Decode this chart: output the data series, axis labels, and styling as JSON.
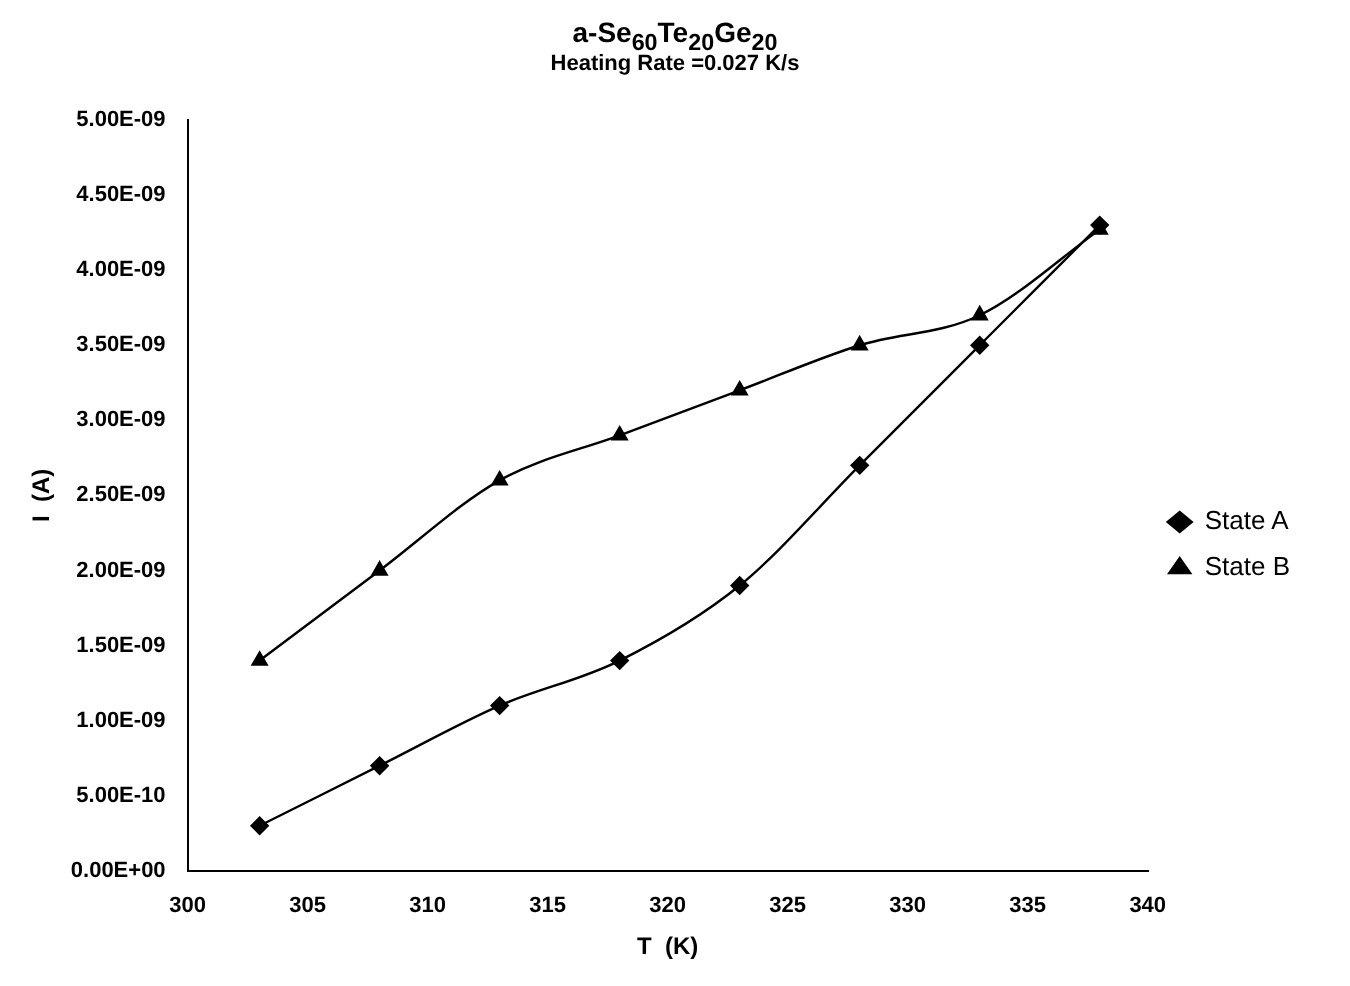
{
  "chart_data": {
    "type": "line",
    "title": "a-Se$_{60}$Te$_{20}$Ge$_{20}$",
    "subtitle": "Heating Rate =0.027 K/s",
    "xlabel": "T  (K)",
    "ylabel": "I  (A)",
    "x": [
      303,
      308,
      313,
      318,
      323,
      328,
      333,
      338
    ],
    "series": [
      {
        "name": "State A",
        "color": "#000000",
        "marker": "diamond",
        "values": [
          3e-10,
          7e-10,
          1.1e-09,
          1.4e-09,
          1.9e-09,
          2.7e-09,
          3.5e-09,
          4.3e-09
        ]
      },
      {
        "name": "State B",
        "color": "#000000",
        "marker": "triangle",
        "values": [
          1.4e-09,
          2e-09,
          2.6e-09,
          2.9e-09,
          3.2e-09,
          3.5e-09,
          3.7e-09,
          4.27e-09
        ]
      }
    ],
    "xlim": [
      300,
      340
    ],
    "xticks": [
      300,
      305,
      310,
      315,
      320,
      325,
      330,
      335,
      340
    ],
    "ylim": [
      0,
      5e-09
    ],
    "yticks": [
      {
        "value": 0,
        "label": "0.00E+00"
      },
      {
        "value": 5e-10,
        "label": "5.00E-10"
      },
      {
        "value": 1e-09,
        "label": "1.00E-09"
      },
      {
        "value": 1.5e-09,
        "label": "1.50E-09"
      },
      {
        "value": 2e-09,
        "label": "2.00E-09"
      },
      {
        "value": 2.5e-09,
        "label": "2.50E-09"
      },
      {
        "value": 3e-09,
        "label": "3.00E-09"
      },
      {
        "value": 3.5e-09,
        "label": "3.50E-09"
      },
      {
        "value": 4e-09,
        "label": "4.00E-09"
      },
      {
        "value": 4.5e-09,
        "label": "4.50E-09"
      },
      {
        "value": 5e-09,
        "label": "5.00E-09"
      }
    ],
    "grid": false,
    "legend": "right"
  }
}
